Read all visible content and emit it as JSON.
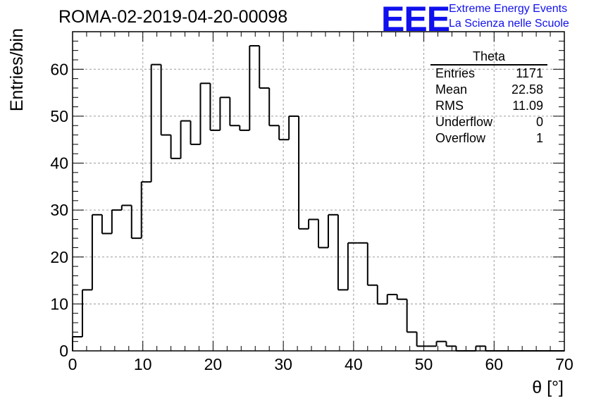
{
  "header": {
    "title": "ROMA-02-2019-04-20-00098",
    "logo": "EEE",
    "tagline1": "Extreme Energy Events",
    "tagline2": "La Scienza nelle Scuole"
  },
  "stats": {
    "name": "Theta",
    "rows": [
      {
        "label": "Entries",
        "value": "1171"
      },
      {
        "label": "Mean",
        "value": "22.58"
      },
      {
        "label": "RMS",
        "value": "11.09"
      },
      {
        "label": "Underflow",
        "value": "0"
      },
      {
        "label": "Overflow",
        "value": "1"
      }
    ]
  },
  "chart_data": {
    "type": "bar",
    "style": "step-histogram",
    "xlabel": "θ [°]",
    "ylabel": "Entries/bin",
    "xlim": [
      0,
      70
    ],
    "ylim": [
      0,
      68
    ],
    "x_ticks": [
      0,
      10,
      20,
      30,
      40,
      50,
      60,
      70
    ],
    "y_ticks": [
      0,
      10,
      20,
      30,
      40,
      50,
      60
    ],
    "grid": true,
    "bin_width": 1.4,
    "bin_edges_start": 0,
    "values": [
      3,
      13,
      29,
      25,
      30,
      31,
      24,
      36,
      61,
      46,
      41,
      49,
      44,
      57,
      47,
      54,
      48,
      47,
      65,
      56,
      48,
      45,
      50,
      26,
      28,
      22,
      29,
      13,
      23,
      23,
      14,
      10,
      12,
      11,
      4,
      1,
      1,
      2,
      1,
      0,
      0,
      1,
      0,
      0,
      0,
      0,
      0,
      0,
      0,
      0
    ],
    "colors": {
      "line": "#000000",
      "grid": "#9a9a9a",
      "logo": "#1010ee"
    }
  }
}
